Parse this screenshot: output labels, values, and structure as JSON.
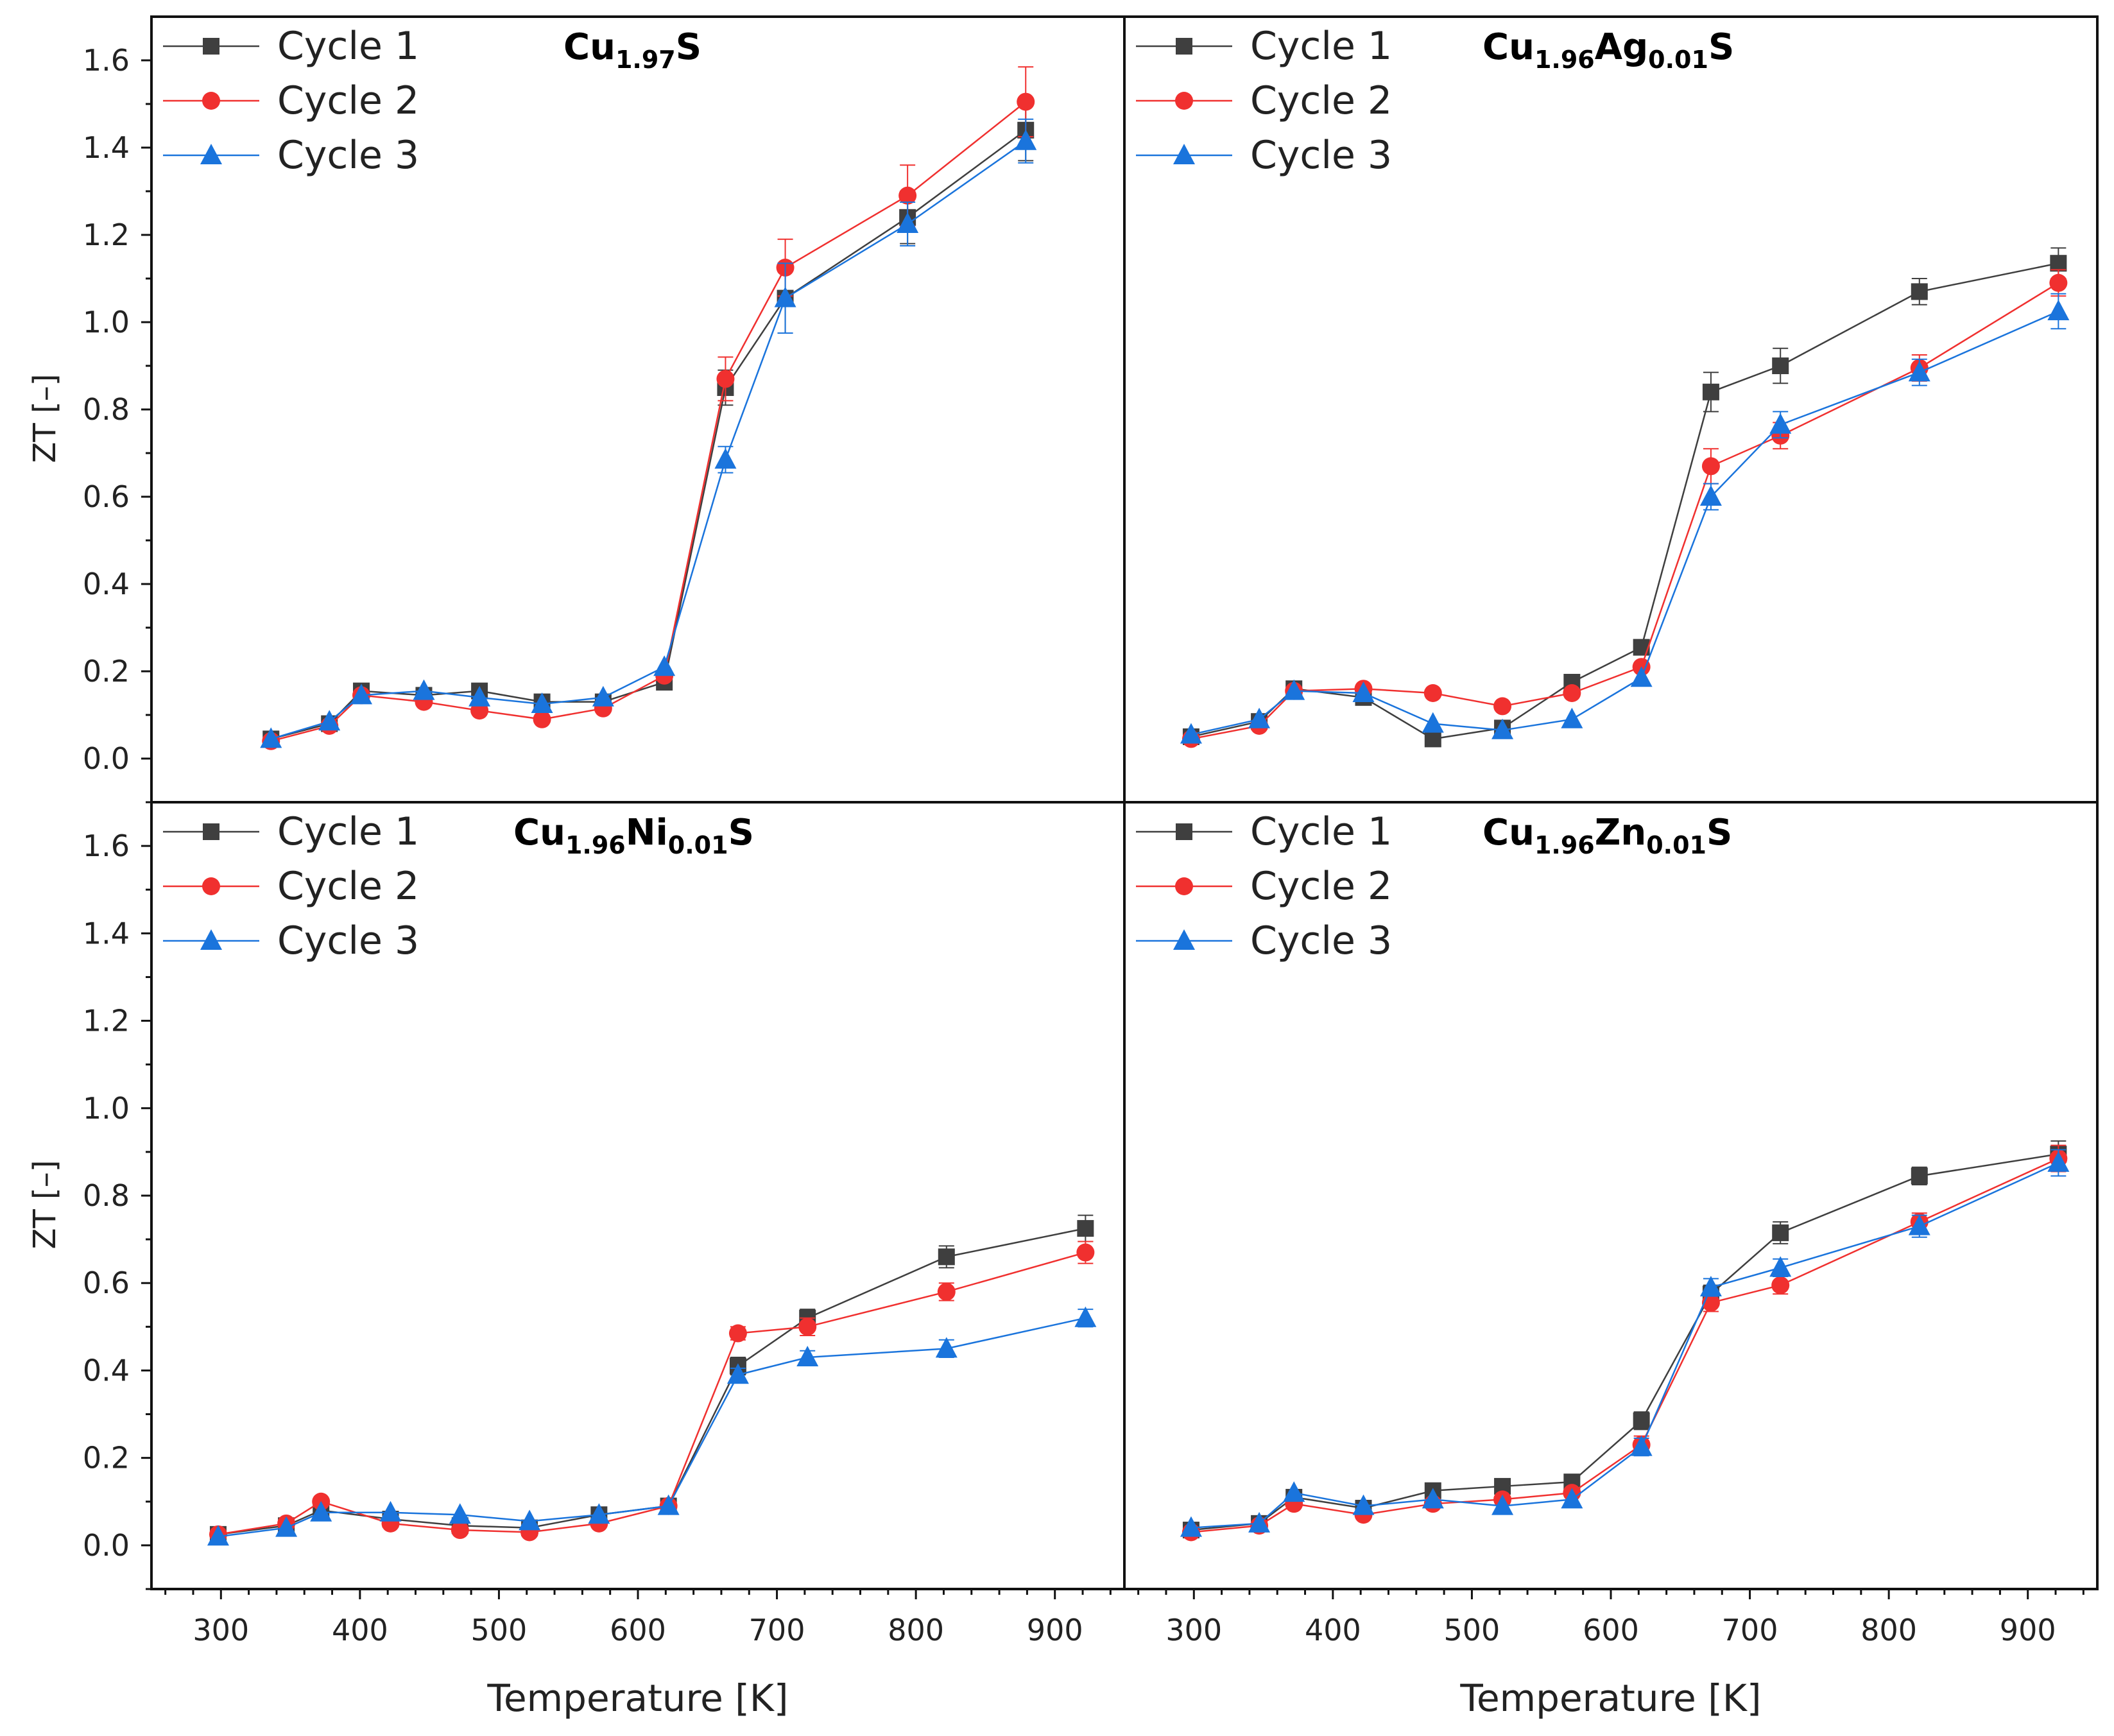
{
  "colors": {
    "cycle1": "#3f3f3f",
    "cycle2": "#f0302f",
    "cycle3": "#1a74dc"
  },
  "chart_data": [
    {
      "type": "line",
      "title": "Cu1.97S",
      "title_parts": [
        {
          "t": "Cu"
        },
        {
          "t": "1.97",
          "sub": true
        },
        {
          "t": "S"
        }
      ],
      "xlabel": "Temperature [K]",
      "ylabel": "ZT [–]",
      "xlim": [
        250,
        950
      ],
      "ylim": [
        -0.1,
        1.7
      ],
      "x_ticks": [
        "300",
        "400",
        "500",
        "600",
        "700",
        "800",
        "900"
      ],
      "y_ticks": [
        "0.0",
        "0.2",
        "0.4",
        "0.6",
        "0.8",
        "1.0",
        "1.2",
        "1.4",
        "1.6"
      ],
      "legend_position": "top-left",
      "series": [
        {
          "name": "Cycle 1",
          "marker": "square",
          "x": [
            336,
            378,
            401,
            446,
            486,
            531,
            575,
            619,
            663,
            706,
            794,
            879
          ],
          "y": [
            0.045,
            0.08,
            0.155,
            0.145,
            0.155,
            0.13,
            0.13,
            0.175,
            0.85,
            1.055,
            1.24,
            1.44
          ],
          "err": [
            0,
            0,
            0,
            0,
            0,
            0,
            0,
            0,
            0.04,
            0.08,
            0.06,
            0.07
          ]
        },
        {
          "name": "Cycle 2",
          "marker": "circle",
          "x": [
            336,
            378,
            401,
            446,
            486,
            531,
            575,
            619,
            663,
            706,
            794,
            879
          ],
          "y": [
            0.04,
            0.075,
            0.145,
            0.13,
            0.11,
            0.09,
            0.115,
            0.19,
            0.87,
            1.125,
            1.29,
            1.505
          ],
          "err": [
            0,
            0,
            0,
            0,
            0,
            0,
            0,
            0,
            0.05,
            0.065,
            0.07,
            0.08
          ]
        },
        {
          "name": "Cycle 3",
          "marker": "triangle",
          "x": [
            336,
            378,
            401,
            446,
            486,
            531,
            575,
            619,
            663,
            706,
            794,
            879
          ],
          "y": [
            0.045,
            0.085,
            0.145,
            0.155,
            0.14,
            0.125,
            0.14,
            0.21,
            0.685,
            1.055,
            1.225,
            1.415
          ],
          "err": [
            0,
            0,
            0,
            0,
            0,
            0,
            0,
            0,
            0.03,
            0.08,
            0.05,
            0.05
          ]
        }
      ]
    },
    {
      "type": "line",
      "title": "Cu1.96Ag0.01S",
      "title_parts": [
        {
          "t": "Cu"
        },
        {
          "t": "1.96",
          "sub": true
        },
        {
          "t": "Ag"
        },
        {
          "t": "0.01",
          "sub": true
        },
        {
          "t": "S"
        }
      ],
      "xlabel": "Temperature [K]",
      "ylabel": "ZT [–]",
      "xlim": [
        250,
        950
      ],
      "ylim": [
        -0.1,
        1.7
      ],
      "x_ticks": [
        "300",
        "400",
        "500",
        "600",
        "700",
        "800",
        "900"
      ],
      "y_ticks": [
        "0.0",
        "0.2",
        "0.4",
        "0.6",
        "0.8",
        "1.0",
        "1.2",
        "1.4",
        "1.6"
      ],
      "legend_position": "top-left",
      "series": [
        {
          "name": "Cycle 1",
          "marker": "square",
          "x": [
            298,
            347,
            372,
            422,
            472,
            522,
            572,
            622,
            672,
            722,
            822,
            922
          ],
          "y": [
            0.05,
            0.085,
            0.16,
            0.14,
            0.045,
            0.07,
            0.175,
            0.255,
            0.84,
            0.9,
            1.07,
            1.135
          ],
          "err": [
            0,
            0,
            0,
            0,
            0,
            0,
            0,
            0,
            0.045,
            0.04,
            0.03,
            0.035
          ]
        },
        {
          "name": "Cycle 2",
          "marker": "circle",
          "x": [
            298,
            347,
            372,
            422,
            472,
            522,
            572,
            622,
            672,
            722,
            822,
            922
          ],
          "y": [
            0.045,
            0.075,
            0.155,
            0.16,
            0.15,
            0.12,
            0.15,
            0.21,
            0.67,
            0.74,
            0.895,
            1.09
          ],
          "err": [
            0,
            0,
            0,
            0,
            0,
            0,
            0,
            0,
            0.04,
            0.03,
            0.03,
            0.03
          ]
        },
        {
          "name": "Cycle 3",
          "marker": "triangle",
          "x": [
            298,
            347,
            372,
            422,
            472,
            522,
            572,
            622,
            672,
            722,
            822,
            922
          ],
          "y": [
            0.055,
            0.09,
            0.155,
            0.15,
            0.08,
            0.065,
            0.09,
            0.185,
            0.6,
            0.765,
            0.885,
            1.025
          ],
          "err": [
            0,
            0,
            0,
            0,
            0,
            0,
            0,
            0,
            0.03,
            0.03,
            0.03,
            0.04
          ]
        }
      ]
    },
    {
      "type": "line",
      "title": "Cu1.96Ni0.01S",
      "title_parts": [
        {
          "t": "Cu"
        },
        {
          "t": "1.96",
          "sub": true
        },
        {
          "t": "Ni"
        },
        {
          "t": "0.01",
          "sub": true
        },
        {
          "t": "S"
        }
      ],
      "xlabel": "Temperature [K]",
      "ylabel": "ZT [–]",
      "xlim": [
        250,
        950
      ],
      "ylim": [
        -0.1,
        1.7
      ],
      "x_ticks": [
        "300",
        "400",
        "500",
        "600",
        "700",
        "800",
        "900"
      ],
      "y_ticks": [
        "0.0",
        "0.2",
        "0.4",
        "0.6",
        "0.8",
        "1.0",
        "1.2",
        "1.4",
        "1.6"
      ],
      "legend_position": "top-left",
      "series": [
        {
          "name": "Cycle 1",
          "marker": "square",
          "x": [
            298,
            347,
            372,
            422,
            472,
            522,
            572,
            622,
            672,
            722,
            822,
            922
          ],
          "y": [
            0.025,
            0.045,
            0.08,
            0.06,
            0.045,
            0.04,
            0.07,
            0.09,
            0.41,
            0.52,
            0.66,
            0.725
          ],
          "err": [
            0,
            0,
            0,
            0,
            0,
            0,
            0,
            0,
            0.02,
            0.02,
            0.025,
            0.03
          ]
        },
        {
          "name": "Cycle 2",
          "marker": "circle",
          "x": [
            298,
            347,
            372,
            422,
            472,
            522,
            572,
            622,
            672,
            722,
            822,
            922
          ],
          "y": [
            0.025,
            0.05,
            0.1,
            0.05,
            0.035,
            0.03,
            0.05,
            0.09,
            0.485,
            0.5,
            0.58,
            0.67
          ],
          "err": [
            0,
            0,
            0,
            0,
            0,
            0,
            0,
            0,
            0.015,
            0.02,
            0.02,
            0.025
          ]
        },
        {
          "name": "Cycle 3",
          "marker": "triangle",
          "x": [
            298,
            347,
            372,
            422,
            472,
            522,
            572,
            622,
            672,
            722,
            822,
            922
          ],
          "y": [
            0.02,
            0.04,
            0.075,
            0.075,
            0.07,
            0.055,
            0.07,
            0.09,
            0.39,
            0.43,
            0.45,
            0.52
          ],
          "err": [
            0,
            0,
            0,
            0,
            0,
            0,
            0,
            0,
            0.015,
            0.015,
            0.02,
            0.02
          ]
        }
      ]
    },
    {
      "type": "line",
      "title": "Cu1.96Zn0.01S",
      "title_parts": [
        {
          "t": "Cu"
        },
        {
          "t": "1.96",
          "sub": true
        },
        {
          "t": "Zn"
        },
        {
          "t": "0.01",
          "sub": true
        },
        {
          "t": "S"
        }
      ],
      "xlabel": "Temperature [K]",
      "ylabel": "ZT [–]",
      "xlim": [
        250,
        950
      ],
      "ylim": [
        -0.1,
        1.7
      ],
      "x_ticks": [
        "300",
        "400",
        "500",
        "600",
        "700",
        "800",
        "900"
      ],
      "y_ticks": [
        "0.0",
        "0.2",
        "0.4",
        "0.6",
        "0.8",
        "1.0",
        "1.2",
        "1.4",
        "1.6"
      ],
      "legend_position": "top-left",
      "series": [
        {
          "name": "Cycle 1",
          "marker": "square",
          "x": [
            298,
            347,
            372,
            422,
            472,
            522,
            572,
            622,
            672,
            722,
            822,
            922
          ],
          "y": [
            0.035,
            0.05,
            0.11,
            0.085,
            0.125,
            0.135,
            0.145,
            0.285,
            0.575,
            0.715,
            0.845,
            0.895
          ],
          "err": [
            0,
            0,
            0,
            0,
            0,
            0,
            0,
            0.02,
            0.02,
            0.025,
            0.02,
            0.03
          ]
        },
        {
          "name": "Cycle 2",
          "marker": "circle",
          "x": [
            298,
            347,
            372,
            422,
            472,
            522,
            572,
            622,
            672,
            722,
            822,
            922
          ],
          "y": [
            0.03,
            0.045,
            0.095,
            0.07,
            0.095,
            0.105,
            0.12,
            0.23,
            0.555,
            0.595,
            0.74,
            0.885
          ],
          "err": [
            0,
            0,
            0,
            0,
            0,
            0,
            0,
            0.02,
            0.02,
            0.02,
            0.02,
            0.03
          ]
        },
        {
          "name": "Cycle 3",
          "marker": "triangle",
          "x": [
            298,
            347,
            372,
            422,
            472,
            522,
            572,
            622,
            672,
            722,
            822,
            922
          ],
          "y": [
            0.04,
            0.05,
            0.12,
            0.09,
            0.105,
            0.09,
            0.105,
            0.225,
            0.59,
            0.635,
            0.73,
            0.875
          ],
          "err": [
            0,
            0,
            0,
            0,
            0,
            0,
            0,
            0.02,
            0.02,
            0.02,
            0.025,
            0.03
          ]
        }
      ]
    }
  ]
}
